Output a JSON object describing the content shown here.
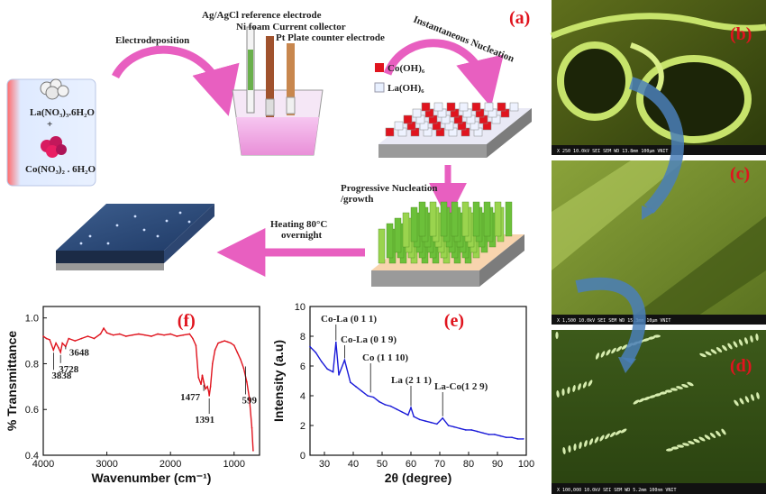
{
  "panel_a": {
    "label": "(a)",
    "electrodeposition": "Electrodeposition",
    "ref_electrode": "Ag/AgCl reference electrode",
    "ni_foam": "Ni foam Current collector",
    "pt_plate": "Pt Plate counter electrode",
    "instantaneous": "Instantaneous Nucleation",
    "legend_co": "Co(OH)₆",
    "legend_la": "La(OH)₆",
    "progressive": "Progressive Nucleation",
    "growth": "/growth",
    "heating": "Heating 80°C",
    "overnight": "overnight",
    "precursor_la": "La(NO₃)₃.6H₂O",
    "plus": "+",
    "precursor_co": "Co(NO₃)₂ . 6H₂O"
  },
  "panel_b": {
    "label": "(b)",
    "sem_info": "X 250   10.0kV SEI   SEM   WD 13.8mm   100μm VNIT"
  },
  "panel_c": {
    "label": "(c)",
    "sem_info": "X 1,500  10.0kV SEI   SEM   WD 15.3mm   10μm VNIT"
  },
  "panel_d": {
    "label": "(d)",
    "sem_info": "X 100,000  10.0kV SEI  SEM  WD 5.2mm  100nm VNIT"
  },
  "colors": {
    "ftir": "#e0141e",
    "xrd": "#1a1ad8",
    "panel_label": "#e0141e",
    "arrow_pink": "#e85fc0"
  },
  "chart_data": [
    {
      "id": "f",
      "panel_label": "(f)",
      "type": "line",
      "xlabel": "Wavenumber (cm⁻¹)",
      "ylabel": "% Transmittance",
      "x_reversed": true,
      "xlim": [
        4000,
        600
      ],
      "ylim": [
        0.4,
        1.05
      ],
      "xticks": [
        4000,
        3000,
        2000,
        1000
      ],
      "yticks": [
        0.4,
        0.6,
        0.8,
        1.0
      ],
      "ytick_labels": [
        "0.4",
        "0.6",
        "0.8",
        "1.0"
      ],
      "x": [
        4000,
        3950,
        3900,
        3840,
        3800,
        3760,
        3728,
        3700,
        3648,
        3600,
        3500,
        3400,
        3300,
        3200,
        3100,
        3050,
        3000,
        2950,
        2900,
        2800,
        2700,
        2600,
        2500,
        2400,
        2300,
        2200,
        2100,
        2000,
        1900,
        1800,
        1700,
        1650,
        1600,
        1560,
        1520,
        1500,
        1477,
        1450,
        1420,
        1400,
        1391,
        1370,
        1340,
        1300,
        1250,
        1200,
        1150,
        1100,
        1050,
        1000,
        950,
        900,
        850,
        800,
        760,
        720,
        700
      ],
      "y": [
        0.92,
        0.91,
        0.905,
        0.86,
        0.89,
        0.87,
        0.85,
        0.89,
        0.875,
        0.91,
        0.9,
        0.91,
        0.92,
        0.91,
        0.93,
        0.955,
        0.935,
        0.93,
        0.925,
        0.93,
        0.92,
        0.925,
        0.93,
        0.925,
        0.92,
        0.93,
        0.925,
        0.93,
        0.92,
        0.925,
        0.93,
        0.91,
        0.88,
        0.74,
        0.71,
        0.75,
        0.72,
        0.69,
        0.7,
        0.68,
        0.66,
        0.7,
        0.8,
        0.86,
        0.89,
        0.895,
        0.9,
        0.895,
        0.89,
        0.88,
        0.85,
        0.82,
        0.78,
        0.72,
        0.65,
        0.52,
        0.42
      ],
      "annotations": [
        {
          "text": "3838",
          "x": 3838,
          "y": 0.86
        },
        {
          "text": "3728",
          "x": 3728,
          "y": 0.85
        },
        {
          "text": "3648",
          "x": 3648,
          "y": 0.875
        },
        {
          "text": "1477",
          "x": 1477,
          "y": 0.72
        },
        {
          "text": "1391",
          "x": 1391,
          "y": 0.66
        },
        {
          "text": "599",
          "x": 820,
          "y": 0.8
        }
      ]
    },
    {
      "id": "e",
      "panel_label": "(e)",
      "type": "line",
      "xlabel": "2θ (degree)",
      "ylabel": "Intensity (a.u)",
      "xlim": [
        25,
        100
      ],
      "ylim": [
        0,
        10
      ],
      "xticks": [
        30,
        40,
        50,
        60,
        70,
        80,
        90,
        100
      ],
      "yticks": [
        0,
        2,
        4,
        6,
        8,
        10
      ],
      "x": [
        25,
        27,
        29,
        31,
        33,
        34,
        35,
        37,
        39,
        41,
        43,
        45,
        47,
        49,
        51,
        53,
        55,
        57,
        59,
        60,
        61,
        63,
        65,
        67,
        69,
        71,
        73,
        75,
        77,
        79,
        81,
        83,
        85,
        87,
        89,
        91,
        93,
        95,
        97,
        99
      ],
      "y": [
        7.3,
        6.9,
        6.3,
        5.8,
        5.6,
        7.6,
        5.4,
        6.4,
        4.9,
        4.6,
        4.3,
        4.0,
        3.9,
        3.6,
        3.4,
        3.3,
        3.1,
        2.9,
        2.7,
        3.2,
        2.6,
        2.4,
        2.3,
        2.2,
        2.1,
        2.5,
        2.0,
        1.9,
        1.8,
        1.7,
        1.7,
        1.6,
        1.5,
        1.4,
        1.4,
        1.3,
        1.2,
        1.2,
        1.1,
        1.1
      ],
      "annotations": [
        {
          "text": "Co-La (0 1 1)",
          "x": 34,
          "y": 7.6
        },
        {
          "text": "Co-La (0 1 9)",
          "x": 37,
          "y": 6.4
        },
        {
          "text": "Co (1 1 10)",
          "x": 46,
          "y": 4.1
        },
        {
          "text": "La (2 1 1)",
          "x": 60,
          "y": 3.2
        },
        {
          "text": "La-Co(1 2 9)",
          "x": 71,
          "y": 2.5
        }
      ]
    }
  ]
}
